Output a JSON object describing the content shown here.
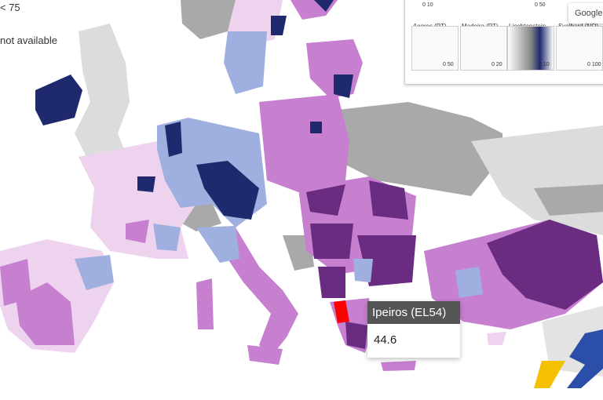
{
  "legend": {
    "items": [
      "< 75",
      "not available"
    ]
  },
  "insets": [
    {
      "label": "Açores (PT)",
      "scale": "0  50"
    },
    {
      "label": "Madeira (PT)",
      "scale": "0  20"
    },
    {
      "label": "Liechtenstein",
      "scale": "0  10"
    },
    {
      "label": "Svalbard (NO)",
      "scale": "0  100"
    }
  ],
  "top_scales": [
    "0  10",
    "0  50"
  ],
  "map_button": "Google",
  "tooltip": {
    "region": "Ipeiros (EL54)",
    "value": 44.6
  }
}
